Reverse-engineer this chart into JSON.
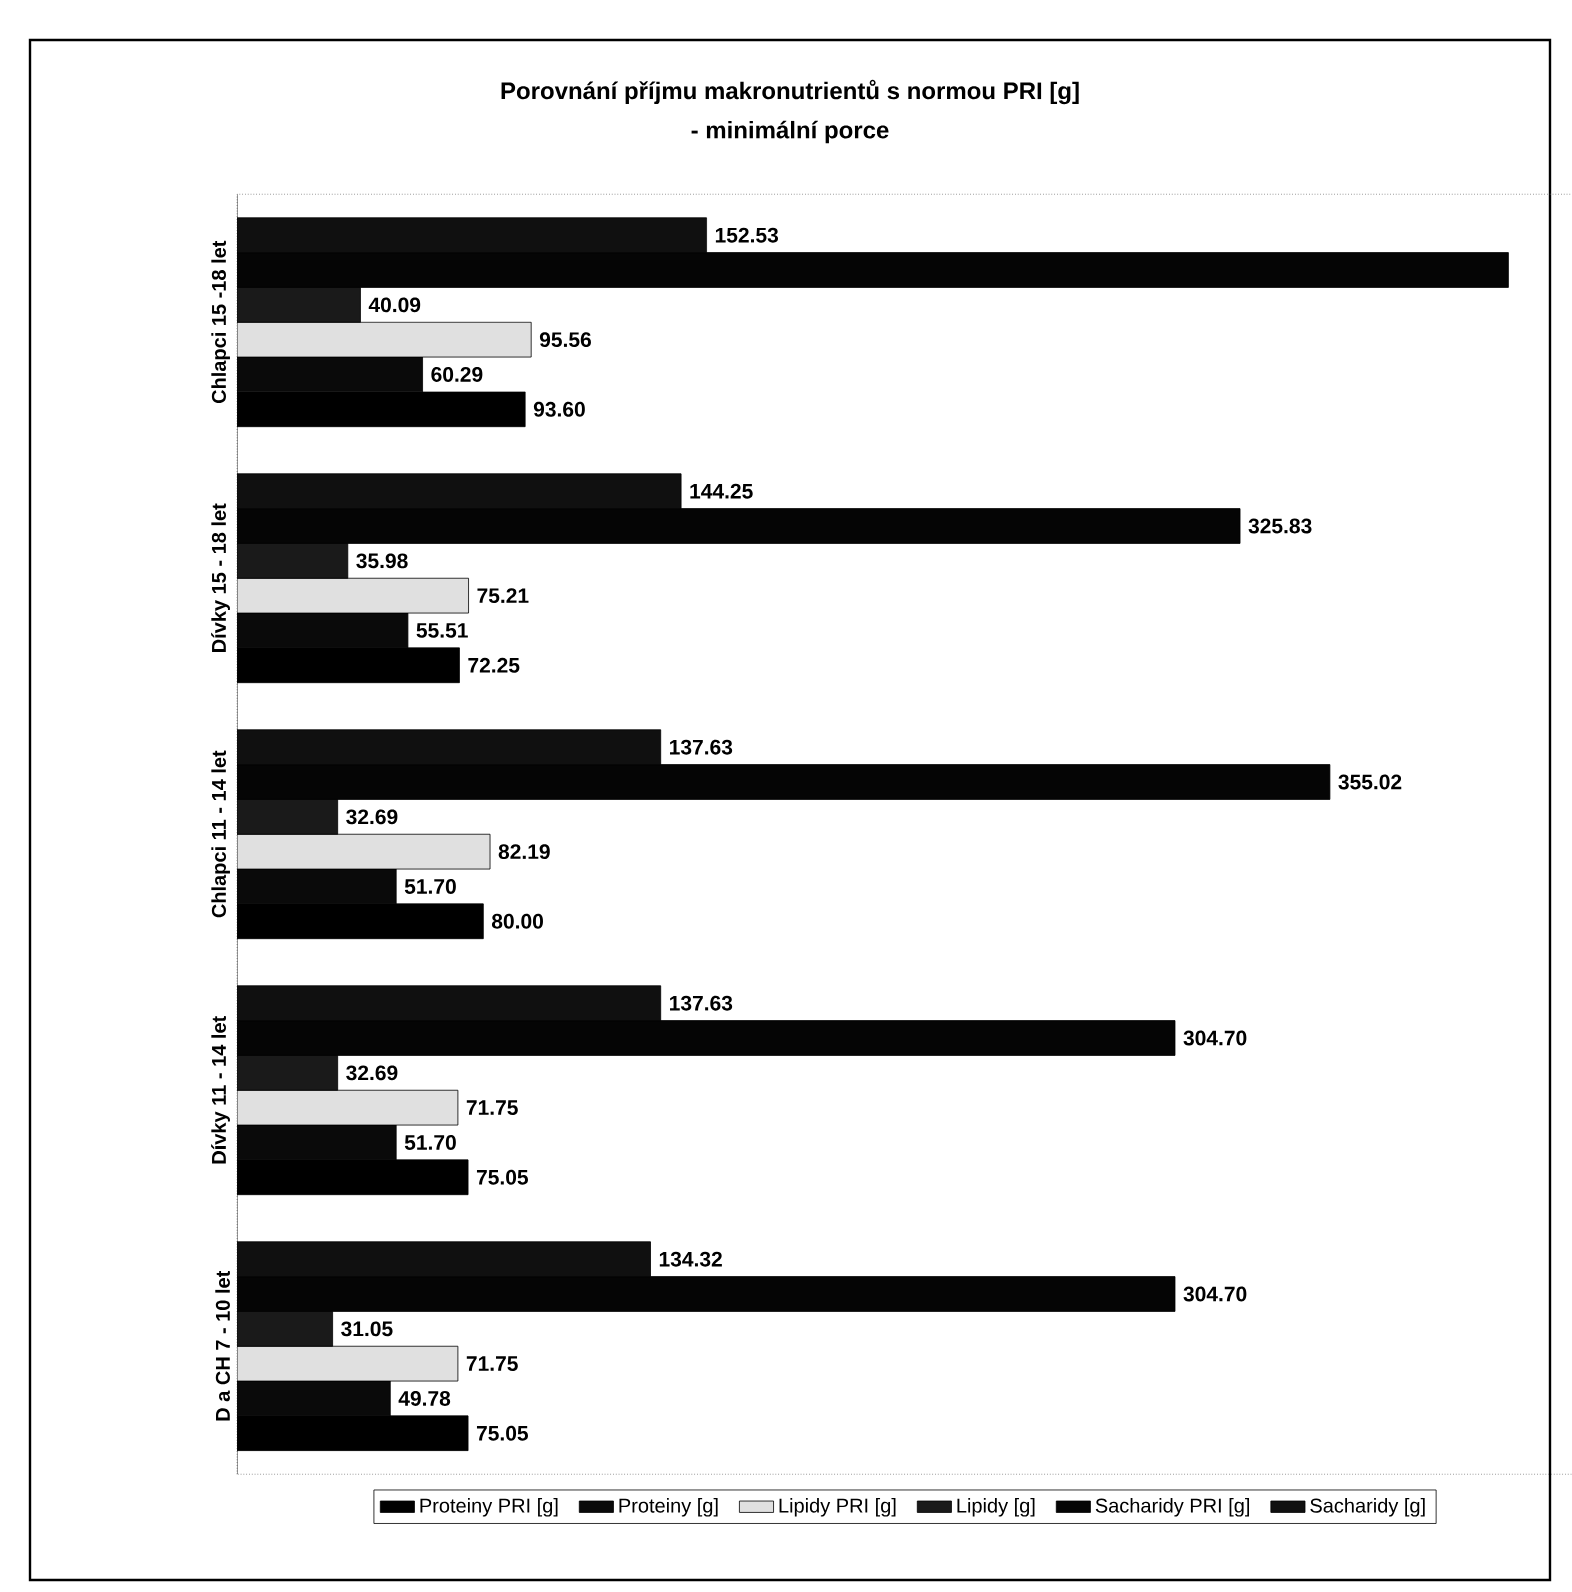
{
  "chart_data": {
    "type": "bar",
    "orientation": "horizontal",
    "title": "Porovnání příjmu makronutrientů s normou PRI [g]",
    "subtitle": "- minimální porce",
    "categories": [
      "Chlapci 15 -18 let",
      "Dívky 15 - 18 let",
      "Chlapci 11 - 14 let",
      "Dívky 11 - 14 let",
      "D a CH 7 - 10 let"
    ],
    "series": [
      {
        "name": "Proteiny PRI [g]",
        "color": "#000000",
        "values": [
          93.6,
          72.25,
          80.0,
          75.05,
          75.05
        ],
        "value_labels": [
          "93.60",
          "72.25",
          "80.00",
          "75.05",
          "75.05"
        ]
      },
      {
        "name": "Proteiny [g]",
        "color": "#0a0a0a",
        "values": [
          60.29,
          55.51,
          51.7,
          51.7,
          49.78
        ],
        "value_labels": [
          "60.29",
          "55.51",
          "51.70",
          "51.70",
          "49.78"
        ]
      },
      {
        "name": "Lipidy PRI [g]",
        "color": "#e0e0e0",
        "values": [
          95.56,
          75.21,
          82.19,
          71.75,
          71.75
        ],
        "value_labels": [
          "95.56",
          "75.21",
          "82.19",
          "71.75",
          "71.75"
        ]
      },
      {
        "name": "Lipidy [g]",
        "color": "#1a1a1a",
        "values": [
          40.09,
          35.98,
          32.69,
          32.69,
          31.05
        ],
        "value_labels": [
          "40.09",
          "35.98",
          "32.69",
          "32.69",
          "31.05"
        ]
      },
      {
        "name": "Sacharidy PRI [g]",
        "color": "#050505",
        "values": [
          413,
          325.83,
          355.02,
          304.7,
          304.7
        ],
        "value_labels": [
          null,
          "325.83",
          "355.02",
          "304.70",
          "304.70"
        ]
      },
      {
        "name": "Sacharidy [g]",
        "color": "#101010",
        "values": [
          152.53,
          144.25,
          137.63,
          137.63,
          134.32
        ],
        "value_labels": [
          "152.53",
          "144.25",
          "137.63",
          "137.63",
          "134.32"
        ]
      }
    ],
    "xlim": [
      0,
      434
    ],
    "tick_labels": "y",
    "legend": "bottom",
    "grid": false
  }
}
